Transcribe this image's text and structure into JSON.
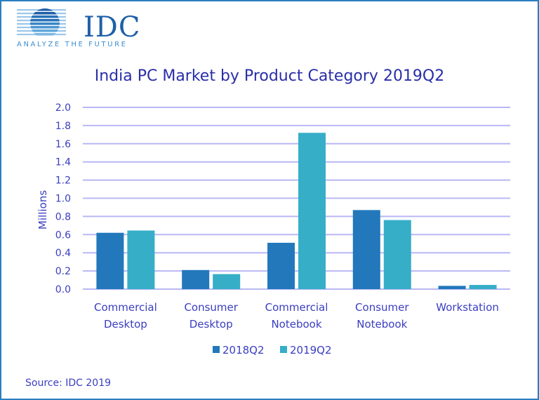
{
  "brand": {
    "logo_text": "IDC",
    "tagline": "ANALYZE THE FUTURE"
  },
  "source": "Source: IDC 2019",
  "colors": {
    "border": "#2a7fc1",
    "series_2018": "#2378bb",
    "series_2019": "#36aec8",
    "text": "#3a3ec0",
    "grid": "#b8b8f5"
  },
  "chart_data": {
    "type": "bar",
    "title": "India PC Market by Product Category 2019Q2",
    "xlabel": "",
    "ylabel": "Millions",
    "ylim": [
      0,
      2.0
    ],
    "yticks": [
      "0.0",
      "0.2",
      "0.4",
      "0.6",
      "0.8",
      "1.0",
      "1.2",
      "1.4",
      "1.6",
      "1.8",
      "2.0"
    ],
    "grid": true,
    "legend_position": "bottom",
    "categories": [
      [
        "Commercial",
        "Desktop"
      ],
      [
        "Consumer",
        "Desktop"
      ],
      [
        "Commercial",
        "Notebook"
      ],
      [
        "Consumer",
        "Notebook"
      ],
      [
        "Workstation"
      ]
    ],
    "series": [
      {
        "name": "2018Q2",
        "values": [
          0.62,
          0.21,
          0.51,
          0.87,
          0.036
        ]
      },
      {
        "name": "2019Q2",
        "values": [
          0.645,
          0.165,
          1.72,
          0.76,
          0.046
        ]
      }
    ]
  }
}
